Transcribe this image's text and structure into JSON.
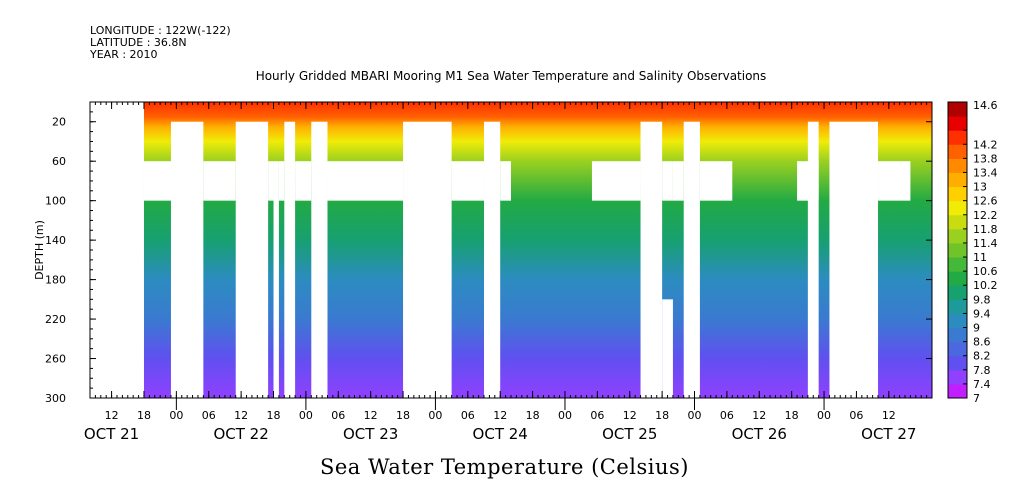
{
  "meta": {
    "longitude": "LONGITUDE : 122W(-122)",
    "latitude": "LATITUDE : 36.8N",
    "year": "YEAR : 2010"
  },
  "chart_data": {
    "type": "heatmap",
    "title": "Hourly Gridded MBARI Mooring M1 Sea Water Temperature and Salinity Observations",
    "xlabel": "",
    "ylabel": "DEPTH (m)",
    "colorbar_label": "Sea Water Temperature (Celsius)",
    "x_range": [
      "2010-10-21T08:00",
      "2010-10-27T20:00"
    ],
    "y_range": [
      0,
      300
    ],
    "y_reversed": true,
    "y_ticks": [
      20,
      60,
      100,
      140,
      180,
      220,
      260,
      300
    ],
    "x_hour_ticks": [
      {
        "t": "2010-10-21T12:00",
        "label": "12"
      },
      {
        "t": "2010-10-21T18:00",
        "label": "18"
      },
      {
        "t": "2010-10-22T00:00",
        "label": "00"
      },
      {
        "t": "2010-10-22T06:00",
        "label": "06"
      },
      {
        "t": "2010-10-22T12:00",
        "label": "12"
      },
      {
        "t": "2010-10-22T18:00",
        "label": "18"
      },
      {
        "t": "2010-10-23T00:00",
        "label": "00"
      },
      {
        "t": "2010-10-23T06:00",
        "label": "06"
      },
      {
        "t": "2010-10-23T12:00",
        "label": "12"
      },
      {
        "t": "2010-10-23T18:00",
        "label": "18"
      },
      {
        "t": "2010-10-24T00:00",
        "label": "00"
      },
      {
        "t": "2010-10-24T06:00",
        "label": "06"
      },
      {
        "t": "2010-10-24T12:00",
        "label": "12"
      },
      {
        "t": "2010-10-24T18:00",
        "label": "18"
      },
      {
        "t": "2010-10-25T00:00",
        "label": "00"
      },
      {
        "t": "2010-10-25T06:00",
        "label": "06"
      },
      {
        "t": "2010-10-25T12:00",
        "label": "12"
      },
      {
        "t": "2010-10-25T18:00",
        "label": "18"
      },
      {
        "t": "2010-10-26T00:00",
        "label": "00"
      },
      {
        "t": "2010-10-26T06:00",
        "label": "06"
      },
      {
        "t": "2010-10-26T12:00",
        "label": "12"
      },
      {
        "t": "2010-10-26T18:00",
        "label": "18"
      },
      {
        "t": "2010-10-27T00:00",
        "label": "00"
      },
      {
        "t": "2010-10-27T06:00",
        "label": "06"
      },
      {
        "t": "2010-10-27T12:00",
        "label": "12"
      }
    ],
    "x_day_labels": [
      {
        "t": "2010-10-21T12:00",
        "label": "OCT 21"
      },
      {
        "t": "2010-10-22T12:00",
        "label": "OCT 22"
      },
      {
        "t": "2010-10-23T12:00",
        "label": "OCT 23"
      },
      {
        "t": "2010-10-24T12:00",
        "label": "OCT 24"
      },
      {
        "t": "2010-10-25T12:00",
        "label": "OCT 25"
      },
      {
        "t": "2010-10-26T12:00",
        "label": "OCT 26"
      },
      {
        "t": "2010-10-27T12:00",
        "label": "OCT 27"
      }
    ],
    "colorbar_levels": [
      "7",
      "7.4",
      "7.8",
      "8.2",
      "8.6",
      "9",
      "9.4",
      "9.8",
      "10.2",
      "10.6",
      "11",
      "11.4",
      "11.8",
      "12.2",
      "12.6",
      "13",
      "13.4",
      "13.8",
      "14.2",
      "14.6"
    ],
    "colorbar_colors": [
      "#c020ff",
      "#9040ff",
      "#6050f0",
      "#4c68e0",
      "#3a7ad0",
      "#2c8cc0",
      "#1f9a9a",
      "#17a070",
      "#22aa44",
      "#44b838",
      "#70c428",
      "#9ad020",
      "#c8dc10",
      "#f0ec08",
      "#ffd000",
      "#ffae00",
      "#ff8a00",
      "#ff6000",
      "#ff3000",
      "#e80000",
      "#b00000"
    ],
    "temperature_profile": [
      {
        "depth": 0,
        "temp": 14.0
      },
      {
        "depth": 15,
        "temp": 13.6
      },
      {
        "depth": 25,
        "temp": 12.8
      },
      {
        "depth": 40,
        "temp": 12.0
      },
      {
        "depth": 60,
        "temp": 11.0
      },
      {
        "depth": 100,
        "temp": 10.2
      },
      {
        "depth": 140,
        "temp": 9.4
      },
      {
        "depth": 180,
        "temp": 8.8
      },
      {
        "depth": 220,
        "temp": 8.3
      },
      {
        "depth": 260,
        "temp": 7.8
      },
      {
        "depth": 300,
        "temp": 7.3
      }
    ],
    "missing_data": [
      {
        "from": "2010-10-21T08:00",
        "to": "2010-10-21T18:00",
        "depth_from": 0,
        "depth_to": 300
      },
      {
        "from": "2010-10-21T18:00",
        "to": "2010-10-22T00:00",
        "depth_from": 60,
        "depth_to": 100
      },
      {
        "from": "2010-10-21T23:00",
        "to": "2010-10-22T05:00",
        "depth_from": 20,
        "depth_to": 300
      },
      {
        "from": "2010-10-22T05:00",
        "to": "2010-10-22T11:00",
        "depth_from": 60,
        "depth_to": 100
      },
      {
        "from": "2010-10-22T11:00",
        "to": "2010-10-22T17:00",
        "depth_from": 20,
        "depth_to": 300
      },
      {
        "from": "2010-10-22T17:00",
        "to": "2010-10-22T18:00",
        "depth_from": 60,
        "depth_to": 100
      },
      {
        "from": "2010-10-22T18:00",
        "to": "2010-10-22T19:00",
        "depth_from": 60,
        "depth_to": 300
      },
      {
        "from": "2010-10-22T19:00",
        "to": "2010-10-22T20:00",
        "depth_from": 60,
        "depth_to": 100
      },
      {
        "from": "2010-10-22T20:00",
        "to": "2010-10-22T22:00",
        "depth_from": 20,
        "depth_to": 300
      },
      {
        "from": "2010-10-22T22:00",
        "to": "2010-10-23T01:00",
        "depth_from": 60,
        "depth_to": 100
      },
      {
        "from": "2010-10-23T01:00",
        "to": "2010-10-23T04:00",
        "depth_from": 20,
        "depth_to": 300
      },
      {
        "from": "2010-10-23T04:00",
        "to": "2010-10-23T18:00",
        "depth_from": 60,
        "depth_to": 100
      },
      {
        "from": "2010-10-23T18:00",
        "to": "2010-10-24T03:00",
        "depth_from": 20,
        "depth_to": 300
      },
      {
        "from": "2010-10-24T03:00",
        "to": "2010-10-24T09:00",
        "depth_from": 60,
        "depth_to": 100
      },
      {
        "from": "2010-10-24T09:00",
        "to": "2010-10-24T12:00",
        "depth_from": 20,
        "depth_to": 300
      },
      {
        "from": "2010-10-24T12:00",
        "to": "2010-10-24T14:00",
        "depth_from": 60,
        "depth_to": 100
      },
      {
        "from": "2010-10-25T05:00",
        "to": "2010-10-25T14:00",
        "depth_from": 60,
        "depth_to": 100
      },
      {
        "from": "2010-10-25T14:00",
        "to": "2010-10-25T18:00",
        "depth_from": 20,
        "depth_to": 300
      },
      {
        "from": "2010-10-25T18:00",
        "to": "2010-10-25T20:00",
        "depth_from": 60,
        "depth_to": 100
      },
      {
        "from": "2010-10-25T18:00",
        "to": "2010-10-25T20:00",
        "depth_from": 200,
        "depth_to": 300
      },
      {
        "from": "2010-10-25T20:00",
        "to": "2010-10-25T22:00",
        "depth_from": 60,
        "depth_to": 100
      },
      {
        "from": "2010-10-25T22:00",
        "to": "2010-10-26T01:00",
        "depth_from": 20,
        "depth_to": 300
      },
      {
        "from": "2010-10-26T01:00",
        "to": "2010-10-26T07:00",
        "depth_from": 60,
        "depth_to": 100
      },
      {
        "from": "2010-10-26T19:00",
        "to": "2010-10-26T23:00",
        "depth_from": 60,
        "depth_to": 100
      },
      {
        "from": "2010-10-26T21:00",
        "to": "2010-10-26T23:00",
        "depth_from": 20,
        "depth_to": 300
      },
      {
        "from": "2010-10-27T01:00",
        "to": "2010-10-27T10:00",
        "depth_from": 20,
        "depth_to": 300
      },
      {
        "from": "2010-10-27T10:00",
        "to": "2010-10-27T16:00",
        "depth_from": 60,
        "depth_to": 100
      }
    ]
  }
}
